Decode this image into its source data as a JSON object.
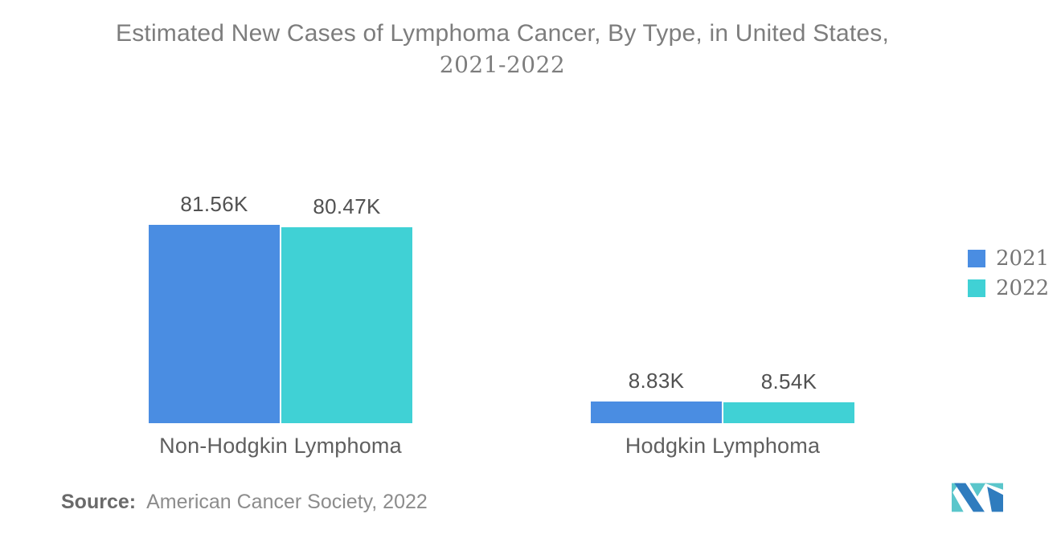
{
  "title": {
    "line1": "Estimated New Cases of Lymphoma Cancer, By Type, in United States,",
    "line2": "2021-2022"
  },
  "chart_data": {
    "type": "bar",
    "title": "Estimated New Cases of Lymphoma Cancer, By Type, in United States, 2021-2022",
    "categories": [
      "Non-Hodgkin Lymphoma",
      "Hodgkin Lymphoma"
    ],
    "series": [
      {
        "name": "2021",
        "color": "#4A8DE2",
        "values": [
          81560,
          8830
        ],
        "value_labels": [
          "81.56K",
          "8.83K"
        ]
      },
      {
        "name": "2022",
        "color": "#40D1D5",
        "values": [
          80470,
          8540
        ],
        "value_labels": [
          "80.47K",
          "8.54K"
        ]
      }
    ],
    "value_unit": "K",
    "legend_position": "right",
    "axes": {
      "x_axis_visible": false,
      "y_axis_visible": false,
      "gridlines": false
    },
    "background": "#FFFFFF"
  },
  "source": {
    "label": "Source:",
    "text": "American Cancer Society, 2022"
  },
  "logo": {
    "name": "mordor-intelligence-mark",
    "colors": {
      "blue": "#2F7CBE",
      "teal": "#5AC6CB"
    }
  },
  "text_colors": {
    "title": "#7D7D7D",
    "value_labels": "#515151",
    "category_labels": "#5F5F5F",
    "legend": "#767676",
    "source_label": "#6A6A6A",
    "source_text": "#8C8C8C"
  }
}
